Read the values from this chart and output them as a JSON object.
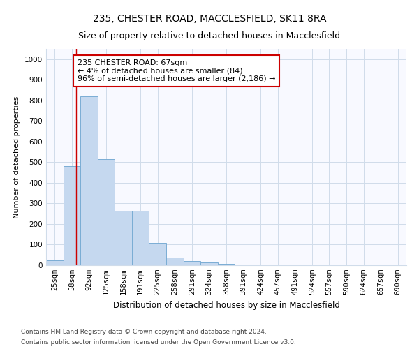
{
  "title1": "235, CHESTER ROAD, MACCLESFIELD, SK11 8RA",
  "title2": "Size of property relative to detached houses in Macclesfield",
  "xlabel": "Distribution of detached houses by size in Macclesfield",
  "ylabel": "Number of detached properties",
  "footer1": "Contains HM Land Registry data © Crown copyright and database right 2024.",
  "footer2": "Contains public sector information licensed under the Open Government Licence v3.0.",
  "bar_labels": [
    "25sqm",
    "58sqm",
    "92sqm",
    "125sqm",
    "158sqm",
    "191sqm",
    "225sqm",
    "258sqm",
    "291sqm",
    "324sqm",
    "358sqm",
    "391sqm",
    "424sqm",
    "457sqm",
    "491sqm",
    "524sqm",
    "557sqm",
    "590sqm",
    "624sqm",
    "657sqm",
    "690sqm"
  ],
  "bar_values": [
    25,
    480,
    820,
    515,
    265,
    265,
    110,
    38,
    20,
    14,
    8,
    0,
    0,
    0,
    0,
    0,
    0,
    0,
    0,
    0,
    0
  ],
  "bar_color": "#c5d8ef",
  "bar_edge_color": "#7aadd4",
  "grid_color": "#d0dcea",
  "annotation_text": "235 CHESTER ROAD: 67sqm\n← 4% of detached houses are smaller (84)\n96% of semi-detached houses are larger (2,186) →",
  "annotation_box_color": "#ffffff",
  "annotation_box_edge": "#cc0000",
  "vline_color": "#cc0000",
  "vline_x": 1.25,
  "ylim": [
    0,
    1050
  ],
  "yticks": [
    0,
    100,
    200,
    300,
    400,
    500,
    600,
    700,
    800,
    900,
    1000
  ],
  "title1_fontsize": 10,
  "title2_fontsize": 9,
  "xlabel_fontsize": 8.5,
  "ylabel_fontsize": 8,
  "tick_fontsize": 7.5,
  "annotation_fontsize": 8,
  "footer_fontsize": 6.5
}
